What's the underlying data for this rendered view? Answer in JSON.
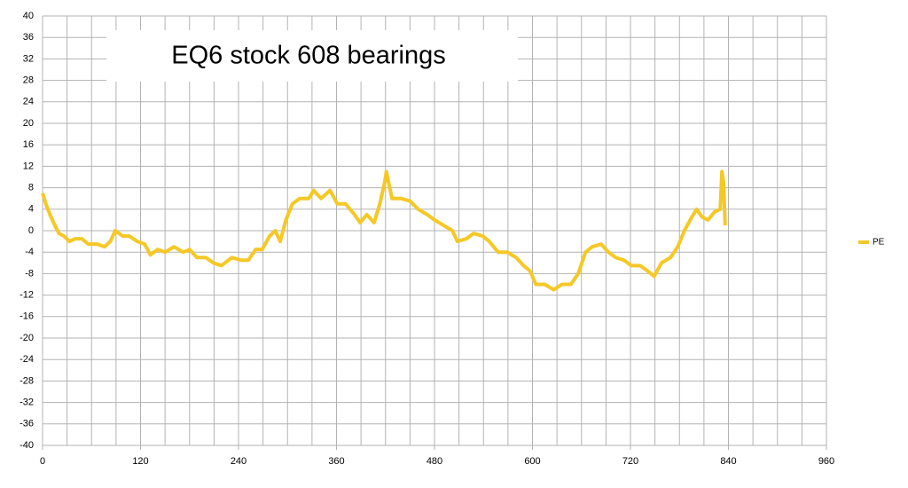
{
  "chart_data": {
    "type": "line",
    "title": "EQ6 stock 608 bearings",
    "x": [
      0,
      4,
      9,
      15,
      20,
      26,
      33,
      40,
      48,
      56,
      67,
      76,
      83,
      89,
      98,
      106,
      116,
      125,
      132,
      141,
      150,
      161,
      172,
      180,
      189,
      200,
      209,
      219,
      232,
      243,
      252,
      261,
      269,
      278,
      285,
      291,
      298,
      306,
      315,
      326,
      332,
      341,
      352,
      361,
      371,
      382,
      389,
      397,
      406,
      413,
      419,
      421,
      428,
      439,
      450,
      460,
      471,
      480,
      491,
      502,
      508,
      519,
      528,
      539,
      547,
      558,
      569,
      580,
      589,
      597,
      604,
      615,
      626,
      636,
      647,
      656,
      665,
      673,
      684,
      693,
      702,
      712,
      721,
      732,
      741,
      749,
      758,
      769,
      778,
      786,
      795,
      801,
      808,
      815,
      823,
      830,
      832,
      834,
      836
    ],
    "series": [
      {
        "name": "PE",
        "color": "#f5c825",
        "values": [
          7,
          5,
          3,
          1,
          -0.5,
          -1,
          -2,
          -1.5,
          -1.5,
          -2.5,
          -2.5,
          -3,
          -2,
          0,
          -1,
          -1,
          -2,
          -2.5,
          -4.5,
          -3.5,
          -4,
          -3,
          -4,
          -3.5,
          -5,
          -5,
          -6,
          -6.5,
          -5,
          -5.5,
          -5.5,
          -3.5,
          -3.5,
          -1,
          0,
          -2,
          2,
          5,
          6,
          6,
          7.5,
          6,
          7.5,
          5,
          5,
          3,
          1.5,
          3,
          1.5,
          5,
          9,
          11,
          6,
          6,
          5.5,
          4,
          3,
          2,
          1,
          0,
          -2,
          -1.5,
          -0.5,
          -1,
          -2,
          -4,
          -4,
          -5,
          -6.5,
          -7.5,
          -10,
          -10,
          -11,
          -10,
          -10,
          -8,
          -4,
          -3,
          -2.5,
          -4,
          -5,
          -5.5,
          -6.5,
          -6.5,
          -7.5,
          -8.5,
          -6,
          -5,
          -3,
          0,
          2.5,
          4,
          2.5,
          2,
          3.5,
          4,
          11,
          9,
          1
        ]
      }
    ],
    "xlim": [
      0,
      960
    ],
    "xticks": [
      0,
      120,
      240,
      360,
      480,
      600,
      720,
      840,
      960
    ],
    "x_grid": [
      0,
      30,
      60,
      90,
      120,
      150,
      180,
      210,
      240,
      270,
      300,
      330,
      360,
      390,
      420,
      450,
      480,
      510,
      540,
      570,
      600,
      630,
      660,
      690,
      720,
      750,
      780,
      810,
      840,
      870,
      900,
      930,
      960
    ],
    "ylim": [
      -40,
      40
    ],
    "yticks": [
      -40,
      -36,
      -32,
      -28,
      -24,
      -20,
      -16,
      -12,
      -8,
      -4,
      0,
      4,
      8,
      12,
      16,
      20,
      24,
      28,
      32,
      36,
      40
    ],
    "grid": true,
    "legend": "right"
  }
}
